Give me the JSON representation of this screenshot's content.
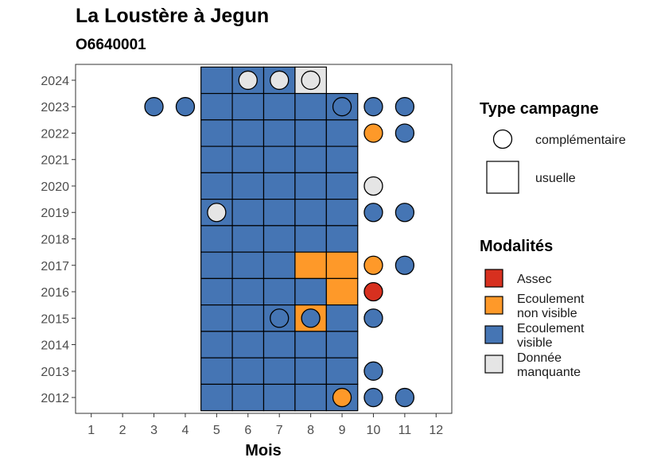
{
  "chart_data": {
    "type": "heatmap",
    "title": "La Loustère à Jegun",
    "subtitle": "O6640001",
    "xlabel": "Mois",
    "ylabel": "",
    "x_ticks": [
      1,
      2,
      3,
      4,
      5,
      6,
      7,
      8,
      9,
      10,
      11,
      12
    ],
    "y_ticks": [
      2012,
      2013,
      2014,
      2015,
      2016,
      2017,
      2018,
      2019,
      2020,
      2021,
      2022,
      2023,
      2024
    ],
    "xlim": [
      0.5,
      12.5
    ],
    "ylim": [
      2011.4,
      2024.6
    ],
    "colors": {
      "Assec": "#d7301f",
      "Ecoulement non visible": "#fe9929",
      "Ecoulement visible": "#4575b4",
      "Donnée manquante": "#e5e5e5"
    },
    "legend_type": {
      "title": "Type campagne",
      "entries": [
        {
          "label": "complémentaire",
          "shape": "circle"
        },
        {
          "label": "usuelle",
          "shape": "square"
        }
      ]
    },
    "legend_modalites": {
      "title": "Modalités",
      "entries": [
        {
          "lines": [
            "Assec"
          ],
          "key": "Assec"
        },
        {
          "lines": [
            "Ecoulement",
            "non visible"
          ],
          "key": "Ecoulement non visible"
        },
        {
          "lines": [
            "Ecoulement",
            "visible"
          ],
          "key": "Ecoulement visible"
        },
        {
          "lines": [
            "Donnée",
            "manquante"
          ],
          "key": "Donnée manquante"
        }
      ]
    },
    "usuelle": [
      {
        "year": 2024,
        "month": 5,
        "value": "Ecoulement visible"
      },
      {
        "year": 2024,
        "month": 6,
        "value": "Ecoulement visible"
      },
      {
        "year": 2024,
        "month": 7,
        "value": "Ecoulement visible"
      },
      {
        "year": 2024,
        "month": 8,
        "value": "Donnée manquante"
      },
      {
        "year": 2023,
        "month": 5,
        "value": "Ecoulement visible"
      },
      {
        "year": 2023,
        "month": 6,
        "value": "Ecoulement visible"
      },
      {
        "year": 2023,
        "month": 7,
        "value": "Ecoulement visible"
      },
      {
        "year": 2023,
        "month": 8,
        "value": "Ecoulement visible"
      },
      {
        "year": 2023,
        "month": 9,
        "value": "Ecoulement visible"
      },
      {
        "year": 2022,
        "month": 5,
        "value": "Ecoulement visible"
      },
      {
        "year": 2022,
        "month": 6,
        "value": "Ecoulement visible"
      },
      {
        "year": 2022,
        "month": 7,
        "value": "Ecoulement visible"
      },
      {
        "year": 2022,
        "month": 8,
        "value": "Ecoulement visible"
      },
      {
        "year": 2022,
        "month": 9,
        "value": "Ecoulement visible"
      },
      {
        "year": 2021,
        "month": 5,
        "value": "Ecoulement visible"
      },
      {
        "year": 2021,
        "month": 6,
        "value": "Ecoulement visible"
      },
      {
        "year": 2021,
        "month": 7,
        "value": "Ecoulement visible"
      },
      {
        "year": 2021,
        "month": 8,
        "value": "Ecoulement visible"
      },
      {
        "year": 2021,
        "month": 9,
        "value": "Ecoulement visible"
      },
      {
        "year": 2020,
        "month": 5,
        "value": "Ecoulement visible"
      },
      {
        "year": 2020,
        "month": 6,
        "value": "Ecoulement visible"
      },
      {
        "year": 2020,
        "month": 7,
        "value": "Ecoulement visible"
      },
      {
        "year": 2020,
        "month": 8,
        "value": "Ecoulement visible"
      },
      {
        "year": 2020,
        "month": 9,
        "value": "Ecoulement visible"
      },
      {
        "year": 2019,
        "month": 5,
        "value": "Ecoulement visible"
      },
      {
        "year": 2019,
        "month": 6,
        "value": "Ecoulement visible"
      },
      {
        "year": 2019,
        "month": 7,
        "value": "Ecoulement visible"
      },
      {
        "year": 2019,
        "month": 8,
        "value": "Ecoulement visible"
      },
      {
        "year": 2019,
        "month": 9,
        "value": "Ecoulement visible"
      },
      {
        "year": 2018,
        "month": 5,
        "value": "Ecoulement visible"
      },
      {
        "year": 2018,
        "month": 6,
        "value": "Ecoulement visible"
      },
      {
        "year": 2018,
        "month": 7,
        "value": "Ecoulement visible"
      },
      {
        "year": 2018,
        "month": 8,
        "value": "Ecoulement visible"
      },
      {
        "year": 2018,
        "month": 9,
        "value": "Ecoulement visible"
      },
      {
        "year": 2017,
        "month": 5,
        "value": "Ecoulement visible"
      },
      {
        "year": 2017,
        "month": 6,
        "value": "Ecoulement visible"
      },
      {
        "year": 2017,
        "month": 7,
        "value": "Ecoulement visible"
      },
      {
        "year": 2017,
        "month": 8,
        "value": "Ecoulement non visible"
      },
      {
        "year": 2017,
        "month": 9,
        "value": "Ecoulement non visible"
      },
      {
        "year": 2016,
        "month": 5,
        "value": "Ecoulement visible"
      },
      {
        "year": 2016,
        "month": 6,
        "value": "Ecoulement visible"
      },
      {
        "year": 2016,
        "month": 7,
        "value": "Ecoulement visible"
      },
      {
        "year": 2016,
        "month": 8,
        "value": "Ecoulement visible"
      },
      {
        "year": 2016,
        "month": 9,
        "value": "Ecoulement non visible"
      },
      {
        "year": 2015,
        "month": 5,
        "value": "Ecoulement visible"
      },
      {
        "year": 2015,
        "month": 6,
        "value": "Ecoulement visible"
      },
      {
        "year": 2015,
        "month": 7,
        "value": "Ecoulement visible"
      },
      {
        "year": 2015,
        "month": 8,
        "value": "Ecoulement non visible"
      },
      {
        "year": 2015,
        "month": 9,
        "value": "Ecoulement visible"
      },
      {
        "year": 2014,
        "month": 5,
        "value": "Ecoulement visible"
      },
      {
        "year": 2014,
        "month": 6,
        "value": "Ecoulement visible"
      },
      {
        "year": 2014,
        "month": 7,
        "value": "Ecoulement visible"
      },
      {
        "year": 2014,
        "month": 8,
        "value": "Ecoulement visible"
      },
      {
        "year": 2014,
        "month": 9,
        "value": "Ecoulement visible"
      },
      {
        "year": 2013,
        "month": 5,
        "value": "Ecoulement visible"
      },
      {
        "year": 2013,
        "month": 6,
        "value": "Ecoulement visible"
      },
      {
        "year": 2013,
        "month": 7,
        "value": "Ecoulement visible"
      },
      {
        "year": 2013,
        "month": 8,
        "value": "Ecoulement visible"
      },
      {
        "year": 2013,
        "month": 9,
        "value": "Ecoulement visible"
      },
      {
        "year": 2012,
        "month": 5,
        "value": "Ecoulement visible"
      },
      {
        "year": 2012,
        "month": 6,
        "value": "Ecoulement visible"
      },
      {
        "year": 2012,
        "month": 7,
        "value": "Ecoulement visible"
      },
      {
        "year": 2012,
        "month": 8,
        "value": "Ecoulement visible"
      },
      {
        "year": 2012,
        "month": 9,
        "value": "Ecoulement visible"
      }
    ],
    "complementaire": [
      {
        "year": 2024,
        "month": 6,
        "value": "Donnée manquante"
      },
      {
        "year": 2024,
        "month": 7,
        "value": "Donnée manquante"
      },
      {
        "year": 2024,
        "month": 8,
        "value": "Donnée manquante"
      },
      {
        "year": 2023,
        "month": 3,
        "value": "Ecoulement visible"
      },
      {
        "year": 2023,
        "month": 4,
        "value": "Ecoulement visible"
      },
      {
        "year": 2023,
        "month": 9,
        "value": "Ecoulement visible"
      },
      {
        "year": 2023,
        "month": 10,
        "value": "Ecoulement visible"
      },
      {
        "year": 2023,
        "month": 11,
        "value": "Ecoulement visible"
      },
      {
        "year": 2022,
        "month": 10,
        "value": "Ecoulement non visible"
      },
      {
        "year": 2022,
        "month": 11,
        "value": "Ecoulement visible"
      },
      {
        "year": 2020,
        "month": 10,
        "value": "Donnée manquante"
      },
      {
        "year": 2019,
        "month": 5,
        "value": "Donnée manquante"
      },
      {
        "year": 2019,
        "month": 10,
        "value": "Ecoulement visible"
      },
      {
        "year": 2019,
        "month": 11,
        "value": "Ecoulement visible"
      },
      {
        "year": 2017,
        "month": 10,
        "value": "Ecoulement non visible"
      },
      {
        "year": 2017,
        "month": 11,
        "value": "Ecoulement visible"
      },
      {
        "year": 2016,
        "month": 10,
        "value": "Assec"
      },
      {
        "year": 2015,
        "month": 7,
        "value": "Ecoulement visible"
      },
      {
        "year": 2015,
        "month": 8,
        "value": "Ecoulement visible"
      },
      {
        "year": 2015,
        "month": 10,
        "value": "Ecoulement visible"
      },
      {
        "year": 2013,
        "month": 10,
        "value": "Ecoulement visible"
      },
      {
        "year": 2012,
        "month": 9,
        "value": "Ecoulement non visible"
      },
      {
        "year": 2012,
        "month": 10,
        "value": "Ecoulement visible"
      },
      {
        "year": 2012,
        "month": 11,
        "value": "Ecoulement visible"
      }
    ]
  }
}
